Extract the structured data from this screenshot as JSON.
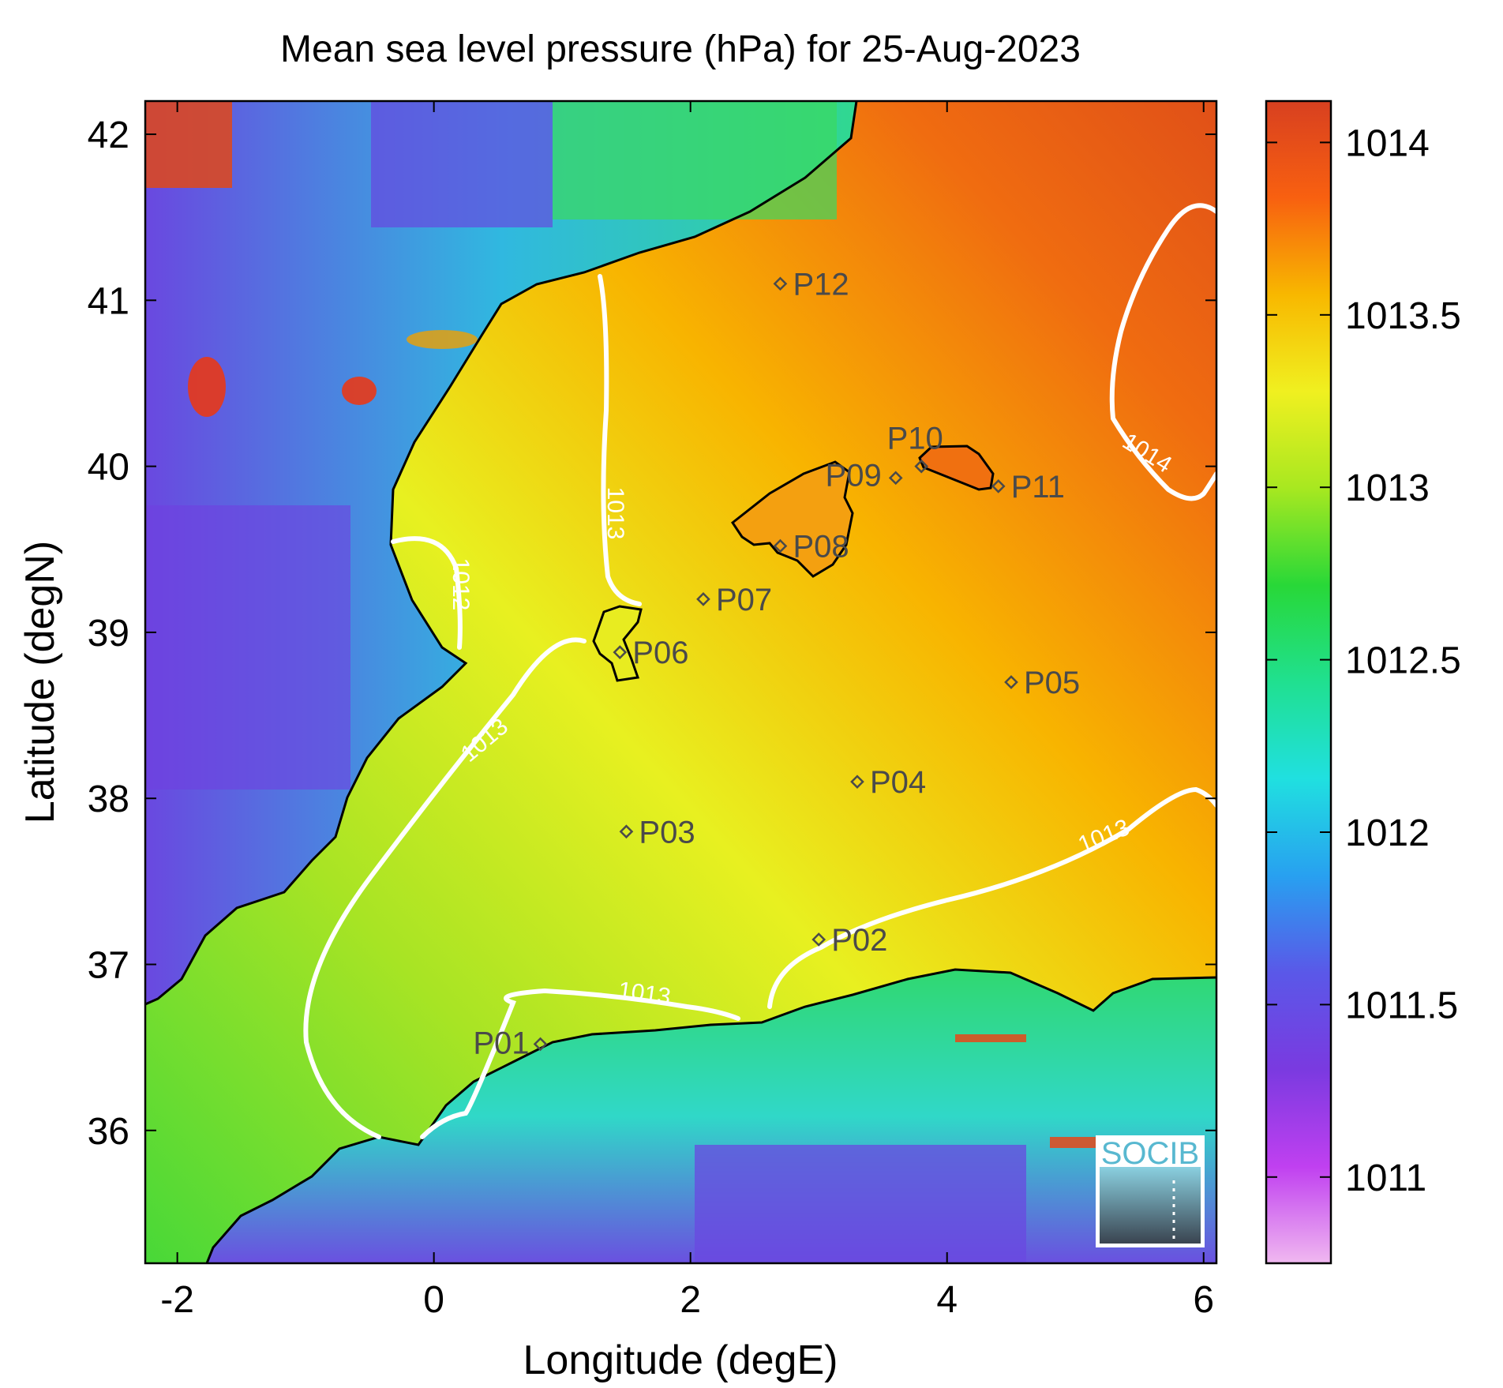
{
  "title": "Mean sea level pressure (hPa) for 25-Aug-2023",
  "xlabel": "Longitude (degE)",
  "ylabel": "Latitude (degN)",
  "x_ticks": [
    "-2",
    "0",
    "2",
    "4",
    "6"
  ],
  "y_ticks": [
    "36",
    "37",
    "38",
    "39",
    "40",
    "41",
    "42"
  ],
  "colorbar": {
    "ticks": [
      "1011",
      "1011.5",
      "1012",
      "1012.5",
      "1013",
      "1013.5",
      "1014"
    ],
    "range": [
      1010.75,
      1014.12
    ],
    "colors": [
      "#f0b8f0",
      "#c040f0",
      "#7a3ae0",
      "#5a58e8",
      "#28a0f0",
      "#20e0e0",
      "#20e090",
      "#28d838",
      "#a8e820",
      "#f0f020",
      "#f8b800",
      "#f86010",
      "#d84020"
    ]
  },
  "map": {
    "extent": {
      "lon": [
        -2.25,
        6.1
      ],
      "lat": [
        35.2,
        42.2
      ]
    },
    "contours": [
      "1012",
      "1013",
      "1013",
      "1013",
      "1013",
      "1014"
    ]
  },
  "stations": [
    {
      "id": "P01",
      "lon": 0.83,
      "lat": 36.52
    },
    {
      "id": "P02",
      "lon": 3.0,
      "lat": 37.15
    },
    {
      "id": "P03",
      "lon": 1.5,
      "lat": 37.8
    },
    {
      "id": "P04",
      "lon": 3.3,
      "lat": 38.1
    },
    {
      "id": "P05",
      "lon": 4.5,
      "lat": 38.7
    },
    {
      "id": "P06",
      "lon": 1.45,
      "lat": 38.88
    },
    {
      "id": "P07",
      "lon": 2.1,
      "lat": 39.2
    },
    {
      "id": "P08",
      "lon": 2.7,
      "lat": 39.52
    },
    {
      "id": "P09",
      "lon": 3.6,
      "lat": 39.93
    },
    {
      "id": "P10",
      "lon": 3.8,
      "lat": 40.0
    },
    {
      "id": "P11",
      "lon": 4.4,
      "lat": 39.88
    },
    {
      "id": "P12",
      "lon": 2.7,
      "lat": 41.1
    }
  ],
  "logo": {
    "text": "SOCIB"
  }
}
